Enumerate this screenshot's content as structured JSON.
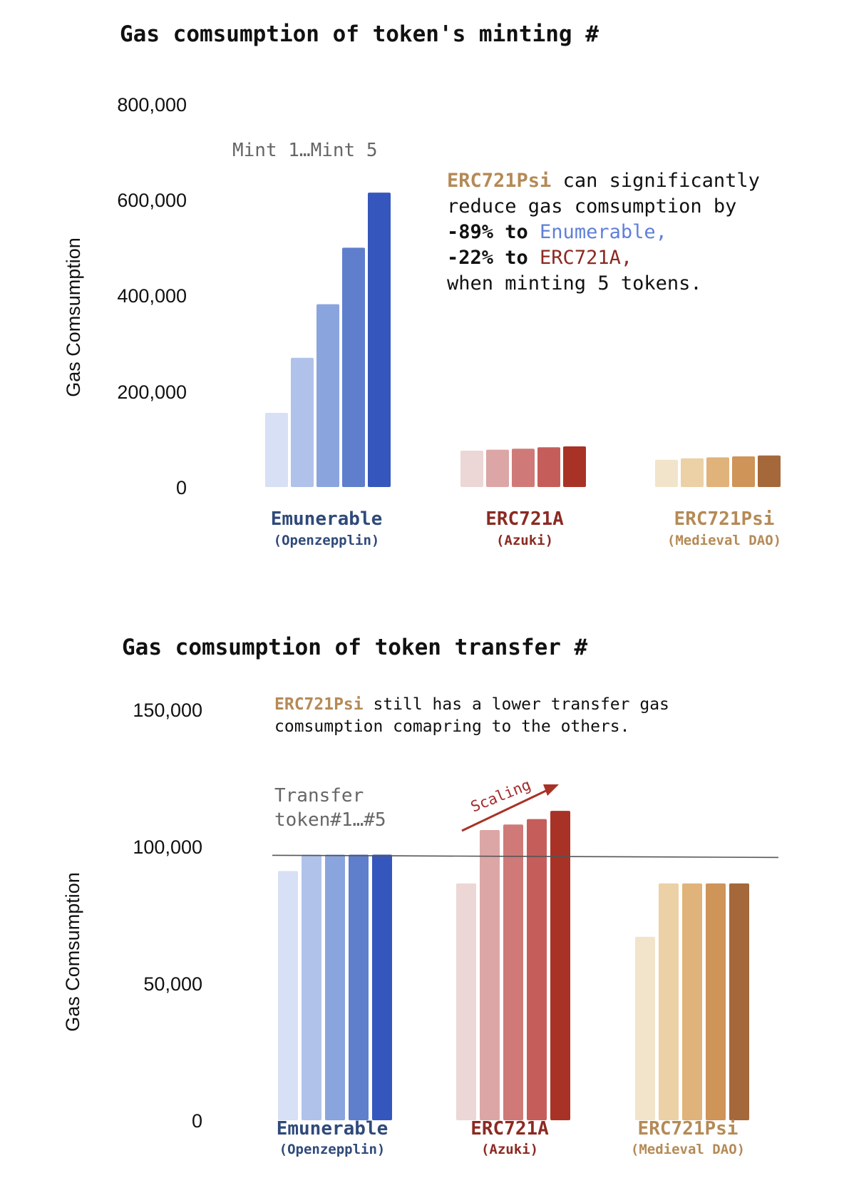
{
  "colors": {
    "enumerable": [
      "#d7e0f4",
      "#b0c2ea",
      "#8aa4dd",
      "#5f7fcc",
      "#3557bd"
    ],
    "erc721a": [
      "#ecd6d6",
      "#dca6a6",
      "#cf7a78",
      "#c55e5b",
      "#a93226"
    ],
    "erc721psi": [
      "#f2e4cb",
      "#ecd0a6",
      "#e0b37a",
      "#cf9458",
      "#a5683a"
    ],
    "enumerable_text": "#2f4a7a",
    "erc721a_text": "#8b2a22",
    "erc721psi_text": "#b58a56",
    "enumerable_highlight": "#5f80d8"
  },
  "chart_data": [
    {
      "type": "bar",
      "title": "Gas comsumption of token's minting #",
      "ylabel": "Gas Comsumption",
      "xlabel": "",
      "ylim": [
        0,
        800000
      ],
      "yticks": [
        "800,000",
        "600,000",
        "400,000",
        "200,000",
        "0"
      ],
      "ytick_values": [
        800000,
        600000,
        400000,
        200000,
        0
      ],
      "grid": false,
      "series_note": "Mint 1…Mint 5",
      "groups": [
        {
          "key": "enumerable",
          "name": "Emunerable",
          "sub": "(Openzepplin)",
          "values": [
            155000,
            270000,
            382000,
            500000,
            615000
          ]
        },
        {
          "key": "erc721a",
          "name": "ERC721A",
          "sub": "(Azuki)",
          "values": [
            76000,
            78000,
            80000,
            83000,
            85000
          ]
        },
        {
          "key": "erc721psi",
          "name": "ERC721Psi",
          "sub": "(Medieval DAO)",
          "values": [
            57000,
            60000,
            62000,
            64000,
            66000
          ]
        }
      ],
      "annotation": {
        "l1a": "ERC721Psi",
        "l1b": " can significantly",
        "l2": "reduce gas comsumption by",
        "l3a": "-89% to ",
        "l3b": "Enumerable,",
        "l4a": "-22% to ",
        "l4b": "ERC721A,",
        "l5": "when minting 5 tokens."
      }
    },
    {
      "type": "bar",
      "title": "Gas comsumption of token transfer #",
      "ylabel": "Gas Comsumption",
      "xlabel": "",
      "ylim": [
        0,
        150000
      ],
      "yticks": [
        "150,000",
        "100,000",
        "50,000",
        "0"
      ],
      "ytick_values": [
        150000,
        100000,
        50000,
        0
      ],
      "grid": false,
      "series_note_1": "Transfer",
      "series_note_2": "token#1…#5",
      "reference_value": 96500,
      "scaling_label": "Scaling",
      "groups": [
        {
          "key": "enumerable",
          "name": "Emunerable",
          "sub": "(Openzepplin)",
          "values": [
            91000,
            97000,
            97000,
            97000,
            97000
          ]
        },
        {
          "key": "erc721a",
          "name": "ERC721A",
          "sub": "(Azuki)",
          "values": [
            86500,
            106000,
            108000,
            110000,
            113000
          ]
        },
        {
          "key": "erc721psi",
          "name": "ERC721Psi",
          "sub": "(Medieval DAO)",
          "values": [
            67000,
            86500,
            86500,
            86500,
            86500
          ]
        }
      ],
      "annotation": {
        "l1a": "ERC721Psi",
        "l1b": " still has a lower transfer gas",
        "l2": "comsumption comapring to the others."
      }
    }
  ]
}
